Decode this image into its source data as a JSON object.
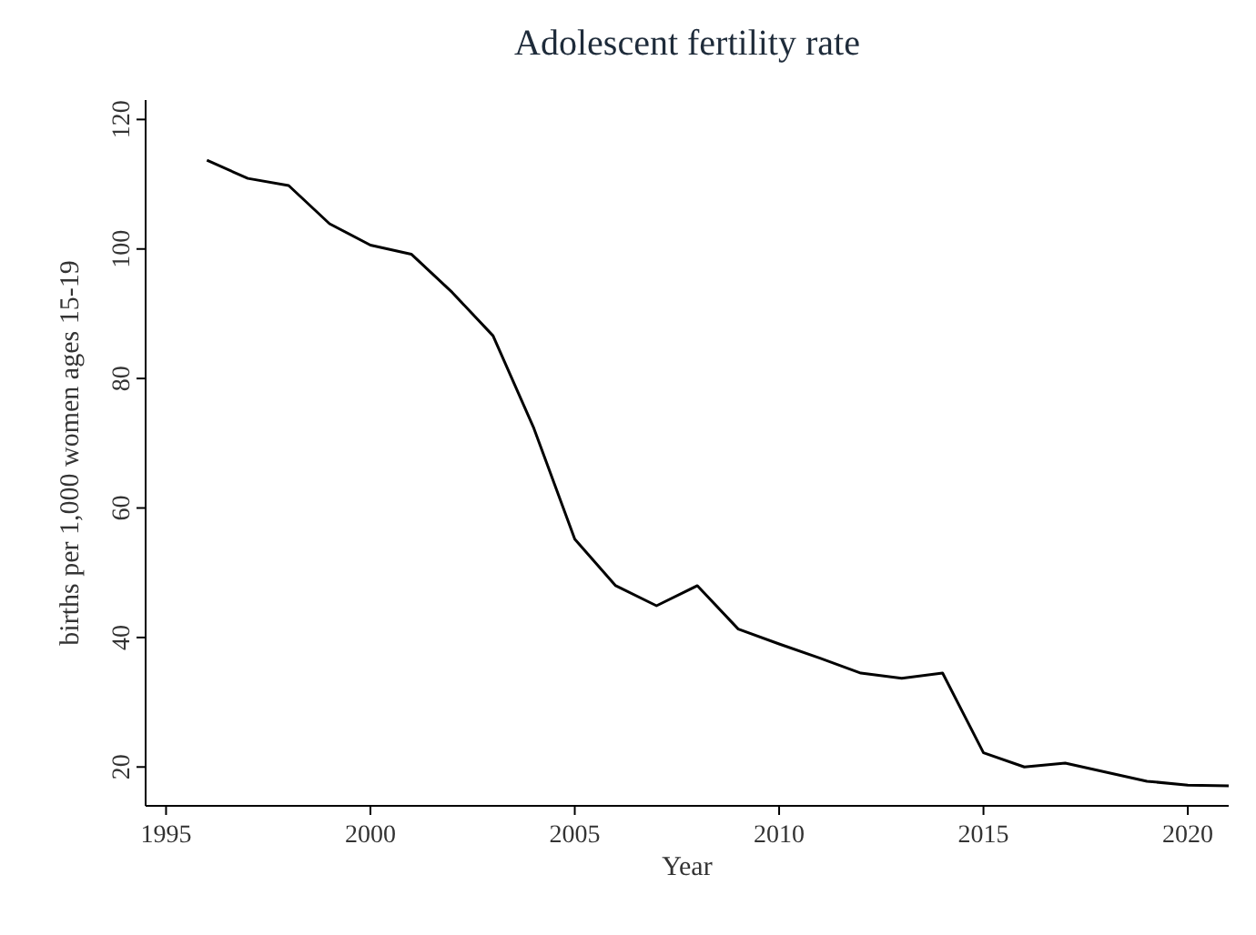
{
  "chart_data": {
    "type": "line",
    "title": "Adolescent fertility rate",
    "xlabel": "Year",
    "ylabel": "births per 1,000 women ages 15-19",
    "x": [
      1996,
      1997,
      1998,
      1999,
      2000,
      2001,
      2002,
      2003,
      2004,
      2005,
      2006,
      2007,
      2008,
      2009,
      2010,
      2011,
      2012,
      2013,
      2014,
      2015,
      2016,
      2017,
      2018,
      2019,
      2020,
      2021
    ],
    "series": [
      {
        "color": "#000000",
        "values": [
          113.7,
          110.9,
          109.8,
          103.9,
          100.6,
          99.2,
          93.3,
          86.6,
          72.3,
          55.2,
          48,
          44.9,
          48,
          41.3,
          39,
          36.8,
          34.5,
          33.7,
          34.5,
          22.2,
          20,
          20.6,
          19.2,
          17.8,
          17.2,
          17.1
        ]
      }
    ],
    "xlim": [
      1994.5,
      2021
    ],
    "ylim": [
      14,
      123
    ],
    "xticks": [
      1995,
      2000,
      2005,
      2010,
      2015,
      2020
    ],
    "yticks": [
      20,
      40,
      60,
      80,
      100,
      120
    ],
    "marker": "none",
    "line_style": "solid"
  }
}
